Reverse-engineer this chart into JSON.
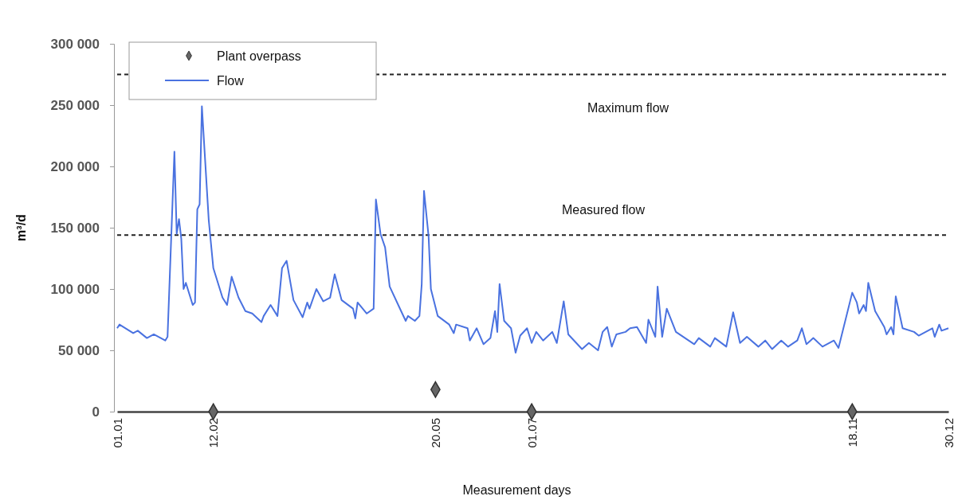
{
  "chart_data": {
    "type": "line",
    "xlabel": "Measurement days",
    "ylabel": "m³/d",
    "xlim": [
      "--01-01",
      "--12-30"
    ],
    "xticks": [
      {
        "value": "--01-01",
        "label": "01.01"
      },
      {
        "value": "--02-12",
        "label": "12.02"
      },
      {
        "value": "--05-20",
        "label": "20.05"
      },
      {
        "value": "--07-01",
        "label": "01.07"
      },
      {
        "value": "--11-18",
        "label": "18.11"
      },
      {
        "value": "--12-30",
        "label": "30.12"
      }
    ],
    "ylim": [
      0,
      300000
    ],
    "yticks": [
      0,
      {
        "value": 50000,
        "label": "50 000"
      },
      {
        "value": 100000,
        "label": "100 000"
      },
      {
        "value": 150000,
        "label": "150 000"
      },
      {
        "value": 200000,
        "label": "200 000"
      },
      {
        "value": 250000,
        "label": "250 000"
      },
      {
        "value": 300000,
        "label": "300 000"
      }
    ],
    "grid": false,
    "legend": "top left",
    "series": [
      {
        "name": "Plant overpass",
        "type": "scatter",
        "marker": "diamond",
        "color": "#666666",
        "x": [
          "--02-12",
          "--05-20",
          "--07-01",
          "--11-18"
        ],
        "values": [
          0,
          18000,
          0,
          0
        ]
      },
      {
        "name": "Flow",
        "type": "line",
        "marker": "none",
        "line_style": "solid",
        "color": "#4a72e0",
        "x": [
          "--01-01",
          "--01-02",
          "--01-08",
          "--01-10",
          "--01-14",
          "--01-17",
          "--01-22",
          "--01-23",
          "--01-26",
          "--01-27",
          "--01-28",
          "--01-29",
          "--01-30",
          "--01-31",
          "--02-03",
          "--02-04",
          "--02-05",
          "--02-06",
          "--02-07",
          "--02-10",
          "--02-12",
          "--02-16",
          "--02-18",
          "--02-20",
          "--02-23",
          "--02-26",
          "--03-01",
          "--03-05",
          "--03-06",
          "--03-09",
          "--03-12",
          "--03-14",
          "--03-16",
          "--03-19",
          "--03-23",
          "--03-25",
          "--03-26",
          "--03-29",
          "--04-01",
          "--04-04",
          "--04-06",
          "--04-09",
          "--04-14",
          "--04-15",
          "--04-16",
          "--04-20",
          "--04-23",
          "--04-24",
          "--04-26",
          "--04-28",
          "--04-30",
          "--05-05",
          "--05-07",
          "--05-08",
          "--05-11",
          "--05-13",
          "--05-14",
          "--05-15",
          "--05-17",
          "--05-18",
          "--05-21",
          "--05-26",
          "--05-28",
          "--05-29",
          "--06-03",
          "--06-04",
          "--06-07",
          "--06-10",
          "--06-13",
          "--06-15",
          "--06-16",
          "--06-17",
          "--06-19",
          "--06-22",
          "--06-24",
          "--06-26",
          "--06-29",
          "--07-01",
          "--07-03",
          "--07-06",
          "--07-10",
          "--07-12",
          "--07-15",
          "--07-17",
          "--07-23",
          "--07-26",
          "--07-30",
          "--08-01",
          "--08-03",
          "--08-05",
          "--08-07",
          "--08-11",
          "--08-13",
          "--08-16",
          "--08-20",
          "--08-21",
          "--08-24",
          "--08-25",
          "--08-27",
          "--08-29",
          "--09-02",
          "--09-10",
          "--09-12",
          "--09-17",
          "--09-19",
          "--09-24",
          "--09-27",
          "--09-30",
          "--10-03",
          "--10-08",
          "--10-11",
          "--10-14",
          "--10-18",
          "--10-21",
          "--10-25",
          "--10-27",
          "--10-29",
          "--11-01",
          "--11-05",
          "--11-10",
          "--11-12",
          "--11-18",
          "--11-20",
          "--11-21",
          "--11-23",
          "--11-24",
          "--11-25",
          "--11-28",
          "--12-02",
          "--12-03",
          "--12-05",
          "--12-06",
          "--12-07",
          "--12-10",
          "--12-15",
          "--12-17",
          "--12-23",
          "--12-24",
          "--12-26",
          "--12-27",
          "--12-30"
        ],
        "values": [
          68000,
          71000,
          64000,
          66000,
          60000,
          63000,
          58000,
          61000,
          212000,
          145000,
          157000,
          141000,
          100000,
          105000,
          87000,
          89000,
          165000,
          169000,
          249000,
          156000,
          117000,
          93000,
          87000,
          110000,
          93000,
          82000,
          80000,
          73000,
          78000,
          87000,
          78000,
          117000,
          123000,
          91000,
          77000,
          89000,
          84000,
          100000,
          90000,
          93000,
          112000,
          91000,
          84000,
          76000,
          89000,
          80000,
          84000,
          173000,
          145000,
          134000,
          102000,
          82000,
          74000,
          78000,
          74000,
          78000,
          104000,
          180000,
          143000,
          100000,
          78000,
          71000,
          64000,
          71000,
          68000,
          58000,
          68000,
          55000,
          60000,
          82000,
          65000,
          104000,
          74000,
          68000,
          48000,
          62000,
          68000,
          56000,
          65000,
          58000,
          65000,
          56000,
          90000,
          63000,
          51000,
          56000,
          50000,
          65000,
          69000,
          53000,
          63000,
          65000,
          68000,
          69000,
          56000,
          75000,
          61000,
          102000,
          61000,
          84000,
          65000,
          55000,
          60000,
          53000,
          60000,
          53000,
          81000,
          56000,
          61000,
          53000,
          58000,
          51000,
          58000,
          53000,
          58000,
          68000,
          55000,
          60000,
          53000,
          58000,
          52000,
          97000,
          89000,
          80000,
          87000,
          82000,
          105000,
          82000,
          69000,
          63000,
          69000,
          63000,
          94000,
          68000,
          65000,
          62000,
          68000,
          61000,
          71000,
          66000,
          68000
        ]
      }
    ],
    "ref_lines": [
      {
        "axis": "y",
        "value": 275000,
        "label": "Maximum flow",
        "color": "#222222",
        "line_style": "dashed"
      },
      {
        "axis": "y",
        "value": 144000,
        "label": "Measured flow",
        "color": "#222222",
        "line_style": "dashed"
      }
    ]
  }
}
